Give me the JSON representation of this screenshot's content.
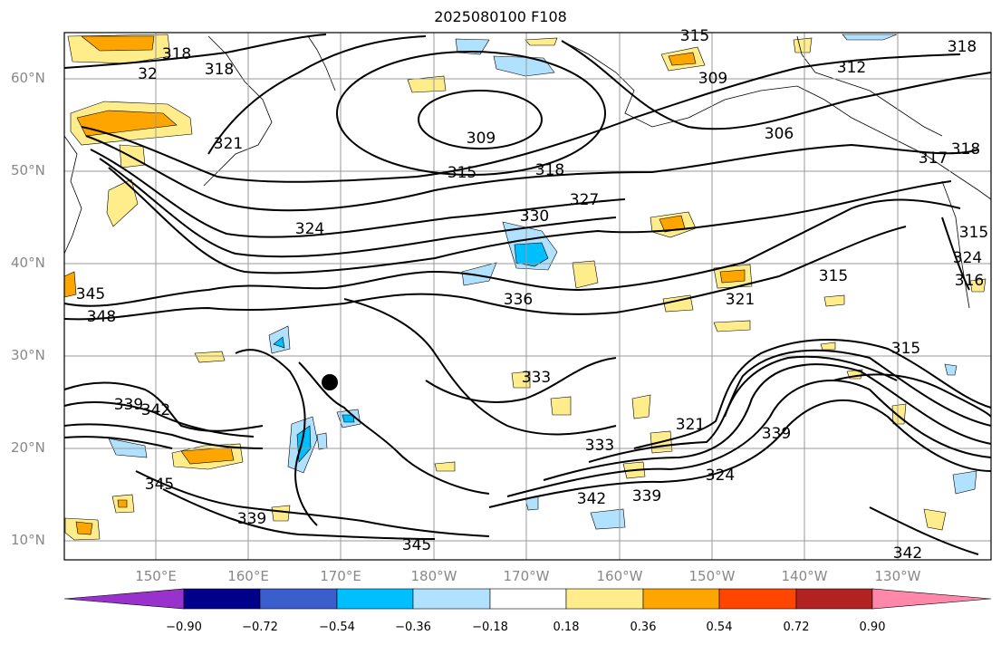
{
  "title": "2025080100 F108",
  "lat_labels": [
    "60°N",
    "50°N",
    "40°N",
    "30°N",
    "20°N",
    "10°N"
  ],
  "lon_labels": [
    "150°E",
    "160°E",
    "170°E",
    "180°W",
    "170°W",
    "160°W",
    "150°W",
    "140°W",
    "130°W"
  ],
  "contour_labels": [
    "318",
    "318",
    "318",
    "321",
    "309",
    "306",
    "312",
    "315",
    "315",
    "309",
    "315",
    "318",
    "327",
    "324",
    "330",
    "336",
    "321",
    "315",
    "315",
    "348",
    "345",
    "342",
    "339",
    "333",
    "321",
    "339",
    "333",
    "324",
    "339",
    "342",
    "345",
    "339",
    "345",
    "342",
    "318",
    "317",
    "324",
    "316",
    "32"
  ],
  "colorbar": {
    "ticks": [
      "−0.90",
      "−0.72",
      "−0.54",
      "−0.36",
      "−0.18",
      "0.18",
      "0.36",
      "0.54",
      "0.72",
      "0.90"
    ],
    "colors": [
      "#9932cc",
      "#00008b",
      "#3a5fcd",
      "#00bfff",
      "#b0e2ff",
      "#ffffff",
      "#ffec8b",
      "#ffa500",
      "#ff4500",
      "#b22222",
      "#ff88aa"
    ]
  },
  "colors": {
    "light_blue": "#b0e2ff",
    "blue": "#00bfff",
    "light_yellow": "#ffec8b",
    "orange": "#ffa500",
    "grid": "#999999"
  }
}
